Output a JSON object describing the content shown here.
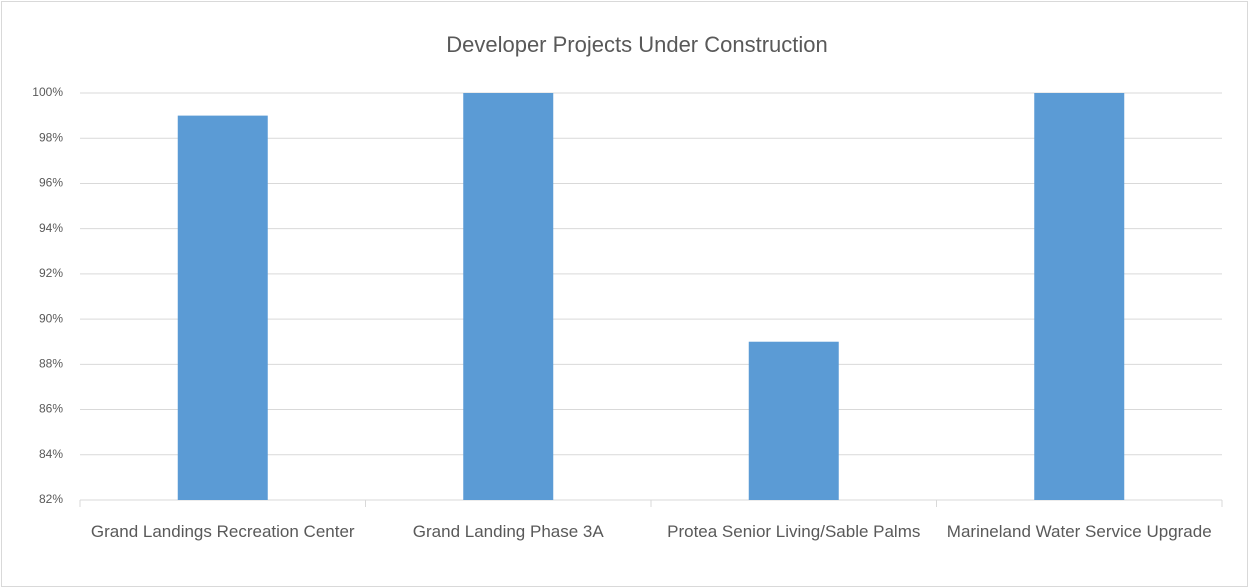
{
  "chart_data": {
    "type": "bar",
    "title": "Developer Projects Under Construction",
    "categories": [
      "Grand Landings Recreation Center",
      "Grand Landing Phase 3A",
      "Protea Senior Living/Sable Palms",
      "Marineland Water Service Upgrade"
    ],
    "values": [
      99,
      100,
      89,
      100
    ],
    "color": "#5b9bd5",
    "ylim": [
      82,
      100
    ],
    "yticks": [
      {
        "value": 82,
        "label": "82%"
      },
      {
        "value": 84,
        "label": "84%"
      },
      {
        "value": 86,
        "label": "86%"
      },
      {
        "value": 88,
        "label": "88%"
      },
      {
        "value": 90,
        "label": "90%"
      },
      {
        "value": 92,
        "label": "92%"
      },
      {
        "value": 94,
        "label": "94%"
      },
      {
        "value": 96,
        "label": "96%"
      },
      {
        "value": 98,
        "label": "98%"
      },
      {
        "value": 100,
        "label": "100%"
      }
    ],
    "grid": true
  }
}
